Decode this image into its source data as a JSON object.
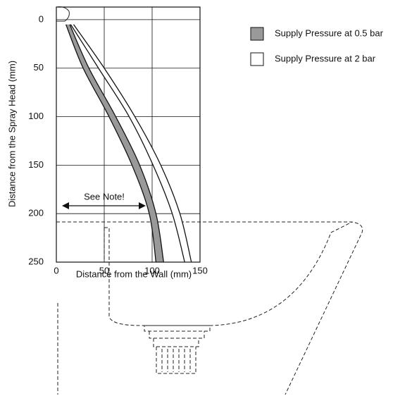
{
  "chart_data": {
    "type": "spray-band",
    "xlabel": "Distance from the Wall (mm)",
    "ylabel": "Distance from the Spray Head (mm)",
    "annotation": "See Note!",
    "xlim": [
      0,
      150
    ],
    "xticks": [
      0,
      50,
      100,
      150
    ],
    "ylim": [
      -13,
      250
    ],
    "yticks": [
      0,
      50,
      100,
      150,
      200,
      250
    ],
    "y_inverted": true,
    "grid": true,
    "y": [
      5,
      50,
      100,
      150,
      200,
      250
    ],
    "series": [
      {
        "name": "Supply Pressure at 0.5 bar",
        "color": "#999999",
        "x_inner": [
          10,
          28,
          55,
          79,
          97,
          104
        ],
        "x_outer": [
          14,
          34,
          62,
          87,
          104,
          112
        ]
      },
      {
        "name": "Supply Pressure at 2 bar",
        "color": "#ffffff",
        "x_inner": [
          15,
          44,
          76,
          101,
          121,
          134
        ],
        "x_outer": [
          18,
          50,
          82,
          109,
          129,
          141
        ]
      }
    ]
  }
}
